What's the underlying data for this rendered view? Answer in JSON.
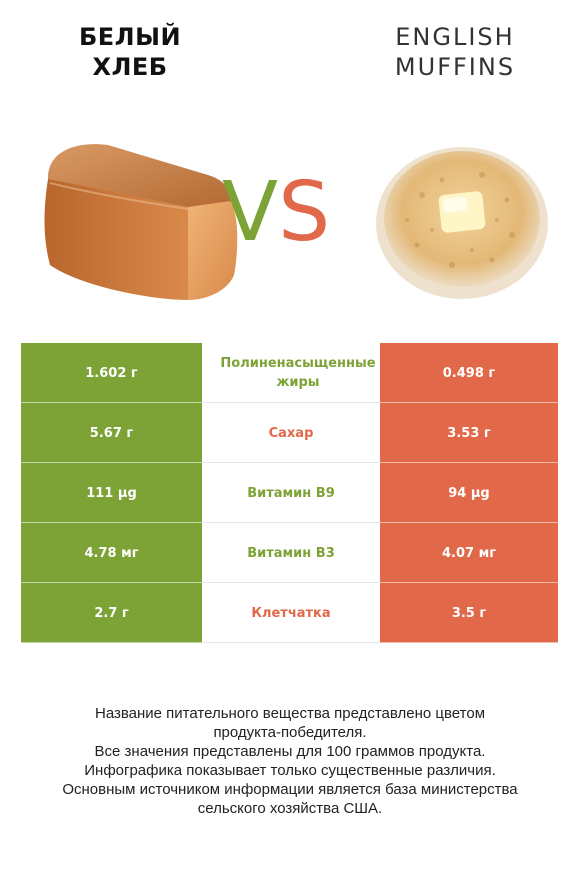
{
  "left_food": {
    "name": "Белый хлеб",
    "line1": "БЕЛЫЙ",
    "line2": "ХЛЕБ",
    "color": "#7da236"
  },
  "right_food": {
    "name": "English muffins",
    "line1": "ENGLISH",
    "line2": "MUFFINS",
    "color": "#e2684a"
  },
  "vs": {
    "v": "V",
    "s": "S"
  },
  "rows": [
    {
      "nutrient": "Полиненасыщенные жиры",
      "left": "1.602 г",
      "right": "0.498 г",
      "winner": "left"
    },
    {
      "nutrient": "Сахар",
      "left": "5.67 г",
      "right": "3.53 г",
      "winner": "right"
    },
    {
      "nutrient": "Витамин B9",
      "left": "111 µg",
      "right": "94 µg",
      "winner": "left"
    },
    {
      "nutrient": "Витамин B3",
      "left": "4.78 мг",
      "right": "4.07 мг",
      "winner": "left"
    },
    {
      "nutrient": "Клетчатка",
      "left": "2.7 г",
      "right": "3.5 г",
      "winner": "right"
    }
  ],
  "footer": {
    "line1": "Название питательного вещества представлено цветом",
    "line2": "продукта-победителя.",
    "line3": "Все значения представлены для 100 граммов продукта.",
    "line4": "Инфографика показывает только существенные различия.",
    "line5": "Основным источником информации является база министерства",
    "line6": "сельского хозяйства США."
  }
}
